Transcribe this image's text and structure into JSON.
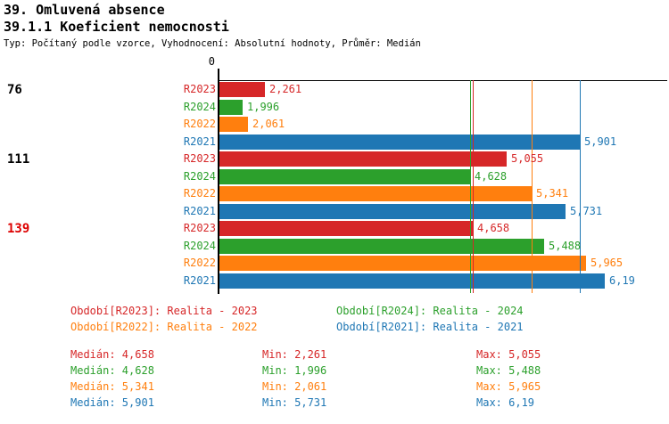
{
  "header": {
    "title1": "39. Omluvená absence",
    "title2": "39.1.1 Koeficient nemocnosti",
    "subtitle": "Typ: Počítaný podle vzorce, Vyhodnocení: Absolutní hodnoty, Průměr: Medián"
  },
  "chart_data": {
    "type": "bar",
    "orientation": "horizontal",
    "title": "39.1.1 Koeficient nemocnosti",
    "value_axis": {
      "origin_label": "0",
      "max_value": 6.19
    },
    "series_colors": {
      "R2023": "#d62728",
      "R2024": "#2ca02c",
      "R2022": "#ff7f0e",
      "R2021": "#1f77b4"
    },
    "groups": [
      {
        "label": "76",
        "label_color": "#000000",
        "bars": [
          {
            "series": "R2023",
            "value": 2.261,
            "value_label": "2,261"
          },
          {
            "series": "R2024",
            "value": 1.996,
            "value_label": "1,996"
          },
          {
            "series": "R2022",
            "value": 2.061,
            "value_label": "2,061"
          },
          {
            "series": "R2021",
            "value": 5.901,
            "value_label": "5,901"
          }
        ]
      },
      {
        "label": "111",
        "label_color": "#000000",
        "bars": [
          {
            "series": "R2023",
            "value": 5.055,
            "value_label": "5,055"
          },
          {
            "series": "R2024",
            "value": 4.628,
            "value_label": "4,628"
          },
          {
            "series": "R2022",
            "value": 5.341,
            "value_label": "5,341"
          },
          {
            "series": "R2021",
            "value": 5.731,
            "value_label": "5,731"
          }
        ]
      },
      {
        "label": "139",
        "label_color": "#dd0000",
        "bars": [
          {
            "series": "R2023",
            "value": 4.658,
            "value_label": "4,658"
          },
          {
            "series": "R2024",
            "value": 5.488,
            "value_label": "5,488"
          },
          {
            "series": "R2022",
            "value": 5.965,
            "value_label": "5,965"
          },
          {
            "series": "R2021",
            "value": 6.19,
            "value_label": "6,19"
          }
        ]
      }
    ],
    "median_lines": [
      {
        "series": "R2023",
        "value": 4.658
      },
      {
        "series": "R2024",
        "value": 4.628
      },
      {
        "series": "R2022",
        "value": 5.341
      },
      {
        "series": "R2021",
        "value": 5.901
      }
    ]
  },
  "legend": [
    {
      "label": "Období[R2023]: Realita - 2023",
      "color": "#d62728"
    },
    {
      "label": "Období[R2024]: Realita - 2024",
      "color": "#2ca02c"
    },
    {
      "label": "Období[R2022]: Realita - 2022",
      "color": "#ff7f0e"
    },
    {
      "label": "Období[R2021]: Realita - 2021",
      "color": "#1f77b4"
    }
  ],
  "stats_labels": {
    "median": "Medián:",
    "min": "Min:",
    "max": "Max:"
  },
  "stats": [
    {
      "series": "R2023",
      "color": "#d62728",
      "median": "4,658",
      "min": "2,261",
      "max": "5,055"
    },
    {
      "series": "R2024",
      "color": "#2ca02c",
      "median": "4,628",
      "min": "1,996",
      "max": "5,488"
    },
    {
      "series": "R2022",
      "color": "#ff7f0e",
      "median": "5,341",
      "min": "2,061",
      "max": "5,965"
    },
    {
      "series": "R2021",
      "color": "#1f77b4",
      "median": "5,901",
      "min": "5,731",
      "max": "6,19"
    }
  ]
}
